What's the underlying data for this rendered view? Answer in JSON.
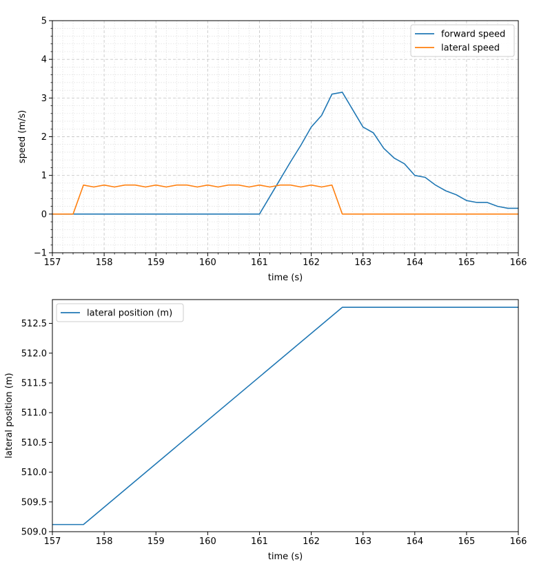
{
  "chart_data": [
    {
      "type": "line",
      "xlabel": "time (s)",
      "ylabel": "speed (m/s)",
      "xlim": [
        157,
        166
      ],
      "ylim": [
        -1,
        5
      ],
      "xticks": [
        "157",
        "158",
        "159",
        "160",
        "161",
        "162",
        "163",
        "164",
        "165",
        "166"
      ],
      "yticks": [
        "−1",
        "0",
        "1",
        "2",
        "3",
        "4",
        "5"
      ],
      "grid": "major and minor, dashed",
      "legend": "top-right",
      "series": [
        {
          "name": "forward speed",
          "color": "#1f77b4",
          "x": [
            157,
            161,
            161.2,
            161.4,
            161.6,
            161.8,
            162,
            162.2,
            162.4,
            162.6,
            162.8,
            163,
            163.2,
            163.4,
            163.6,
            163.8,
            164,
            164.2,
            164.4,
            164.6,
            164.8,
            165,
            165.2,
            165.4,
            165.6,
            165.8,
            166
          ],
          "y": [
            0,
            0,
            0.45,
            0.9,
            1.35,
            1.78,
            2.25,
            2.55,
            3.1,
            3.15,
            2.7,
            2.25,
            2.1,
            1.7,
            1.45,
            1.3,
            1.0,
            0.95,
            0.75,
            0.6,
            0.5,
            0.35,
            0.3,
            0.3,
            0.2,
            0.15,
            0.15
          ]
        },
        {
          "name": "lateral speed",
          "color": "#ff7f0e",
          "x": [
            157,
            157.4,
            157.6,
            157.8,
            158,
            158.2,
            158.4,
            158.6,
            158.8,
            159,
            159.2,
            159.4,
            159.6,
            159.8,
            160,
            160.2,
            160.4,
            160.6,
            160.8,
            161,
            161.2,
            161.4,
            161.6,
            161.8,
            162,
            162.2,
            162.4,
            162.6,
            166
          ],
          "y": [
            0,
            0,
            0.75,
            0.7,
            0.75,
            0.7,
            0.75,
            0.75,
            0.7,
            0.75,
            0.7,
            0.75,
            0.75,
            0.7,
            0.75,
            0.7,
            0.75,
            0.75,
            0.7,
            0.75,
            0.7,
            0.75,
            0.75,
            0.7,
            0.75,
            0.7,
            0.75,
            0,
            0
          ]
        }
      ]
    },
    {
      "type": "line",
      "xlabel": "time (s)",
      "ylabel": "lateral position (m)",
      "xlim": [
        157,
        166
      ],
      "ylim": [
        509.0,
        512.9
      ],
      "xticks": [
        "157",
        "158",
        "159",
        "160",
        "161",
        "162",
        "163",
        "164",
        "165",
        "166"
      ],
      "yticks": [
        "509.0",
        "509.5",
        "510.0",
        "510.5",
        "511.0",
        "511.5",
        "512.0",
        "512.5"
      ],
      "grid": "off",
      "legend": "top-left",
      "series": [
        {
          "name": "lateral position (m)",
          "color": "#1f77b4",
          "x": [
            157,
            157.6,
            162.6,
            166
          ],
          "y": [
            509.12,
            509.12,
            512.77,
            512.77
          ]
        }
      ]
    }
  ]
}
